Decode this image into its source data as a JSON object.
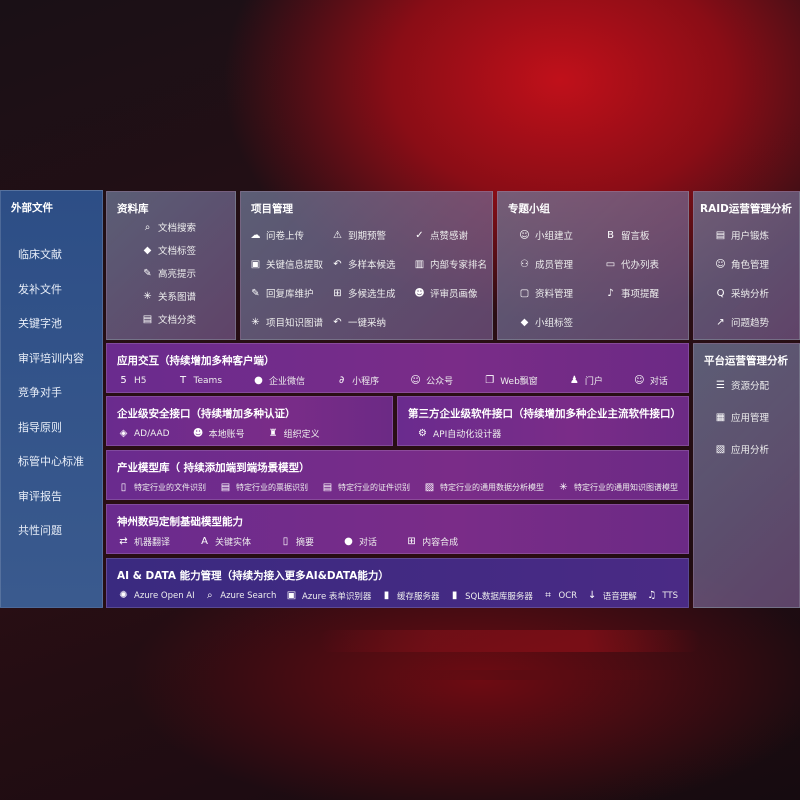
{
  "left": {
    "title": "外部文件",
    "items": [
      "临床文献",
      "发补文件",
      "关键字池",
      "审评培训内容",
      "竞争对手",
      "指导原则",
      "标管中心标准",
      "审评报告",
      "共性问题"
    ]
  },
  "ziliaoku": {
    "title": "资料库",
    "items": [
      {
        "icon": "doc-search-icon",
        "label": "文档搜索"
      },
      {
        "icon": "tag-icon",
        "label": "文档标签"
      },
      {
        "icon": "pen-icon",
        "label": "高亮提示"
      },
      {
        "icon": "graph-icon",
        "label": "关系图谱"
      },
      {
        "icon": "doc-classify-icon",
        "label": "文档分类"
      }
    ]
  },
  "xiangmu": {
    "title": "项目管理",
    "items": [
      {
        "icon": "cloud-upload-icon",
        "label": "问卷上传"
      },
      {
        "icon": "alarm-icon",
        "label": "到期预警"
      },
      {
        "icon": "thumbs-up-icon",
        "label": "点赞感谢"
      },
      {
        "icon": "extract-icon",
        "label": "关键信息提取"
      },
      {
        "icon": "reply-icon",
        "label": "多样本候选"
      },
      {
        "icon": "ranking-icon",
        "label": "内部专家排名"
      },
      {
        "icon": "edit-icon",
        "label": "回复库维护"
      },
      {
        "icon": "puzzle-icon",
        "label": "多候选生成"
      },
      {
        "icon": "user-icon",
        "label": "评审员画像"
      },
      {
        "icon": "graph-icon",
        "label": "项目知识图谱"
      },
      {
        "icon": "reply-icon",
        "label": "一键采纳"
      }
    ]
  },
  "zhuanti": {
    "title": "专题小组",
    "items": [
      {
        "icon": "group-icon",
        "label": "小组建立"
      },
      {
        "icon": "bbs-icon",
        "label": "留言板"
      },
      {
        "icon": "member-add-icon",
        "label": "成员管理"
      },
      {
        "icon": "clipboard-icon",
        "label": "代办列表"
      },
      {
        "icon": "folder-icon",
        "label": "资料管理"
      },
      {
        "icon": "bell-icon",
        "label": "事项提醒"
      },
      {
        "icon": "tag-icon",
        "label": "小组标签"
      }
    ]
  },
  "raid": {
    "title": "RAID运营管理分析",
    "items": [
      {
        "icon": "id-card-icon",
        "label": "用户锻炼"
      },
      {
        "icon": "group-icon",
        "label": "角色管理"
      },
      {
        "icon": "qa-icon",
        "label": "采纳分析"
      },
      {
        "icon": "trend-icon",
        "label": "问题趋势"
      }
    ]
  },
  "platform": {
    "title": "平台运营管理分析",
    "items": [
      {
        "icon": "list-icon",
        "label": "资源分配"
      },
      {
        "icon": "apps-icon",
        "label": "应用管理"
      },
      {
        "icon": "chart-icon",
        "label": "应用分析"
      }
    ]
  },
  "app": {
    "title": "应用交互（持续增加多种客户端）",
    "items": [
      {
        "icon": "html5-icon",
        "label": "H5"
      },
      {
        "icon": "teams-icon",
        "label": "Teams"
      },
      {
        "icon": "wechat-icon",
        "label": "企业微信"
      },
      {
        "icon": "miniprogram-icon",
        "label": "小程序"
      },
      {
        "icon": "group-icon",
        "label": "公众号"
      },
      {
        "icon": "window-icon",
        "label": "Web飘窗"
      },
      {
        "icon": "portal-icon",
        "label": "门户"
      },
      {
        "icon": "chat-users-icon",
        "label": "对话"
      }
    ]
  },
  "security": {
    "title": "企业级安全接口（持续增加多种认证）",
    "items": [
      {
        "icon": "ad-icon",
        "label": "AD/AAD"
      },
      {
        "icon": "user-icon",
        "label": "本地账号"
      },
      {
        "icon": "org-icon",
        "label": "组织定义"
      }
    ]
  },
  "third": {
    "title": "第三方企业级软件接口（持续增加多种企业主流软件接口）",
    "items": [
      {
        "icon": "gear-icon",
        "label": "API自动化设计器"
      }
    ]
  },
  "industry": {
    "title": "产业模型库（ 持续添加端到端场景模型）",
    "items": [
      {
        "icon": "doc-icon",
        "label": "特定行业的文件识别"
      },
      {
        "icon": "receipt-icon",
        "label": "特定行业的票据识别"
      },
      {
        "icon": "id-card-icon",
        "label": "特定行业的证件识别"
      },
      {
        "icon": "data-analysis-icon",
        "label": "特定行业的通用数据分析模型"
      },
      {
        "icon": "graph-icon",
        "label": "特定行业的通用知识图谱模型"
      }
    ]
  },
  "base": {
    "title": "神州数码定制基础模型能力",
    "items": [
      {
        "icon": "translate-icon",
        "label": "机器翻译"
      },
      {
        "icon": "entity-icon",
        "label": "关键实体"
      },
      {
        "icon": "summary-icon",
        "label": "摘要"
      },
      {
        "icon": "chat-icon",
        "label": "对话"
      },
      {
        "icon": "compose-icon",
        "label": "内容合成"
      }
    ]
  },
  "ai": {
    "title": "AI & DATA 能力管理（持续为接入更多AI&DATA能力）",
    "items": [
      {
        "icon": "openai-icon",
        "label": "Azure Open AI"
      },
      {
        "icon": "search-icon",
        "label": "Azure Search"
      },
      {
        "icon": "form-icon",
        "label": "Azure 表单识别器"
      },
      {
        "icon": "cache-icon",
        "label": "缓存服务器"
      },
      {
        "icon": "sql-icon",
        "label": "SQL数据库服务器"
      },
      {
        "icon": "ocr-icon",
        "label": "OCR"
      },
      {
        "icon": "voice-icon",
        "label": "语音理解"
      },
      {
        "icon": "tts-icon",
        "label": "TTS"
      }
    ]
  }
}
